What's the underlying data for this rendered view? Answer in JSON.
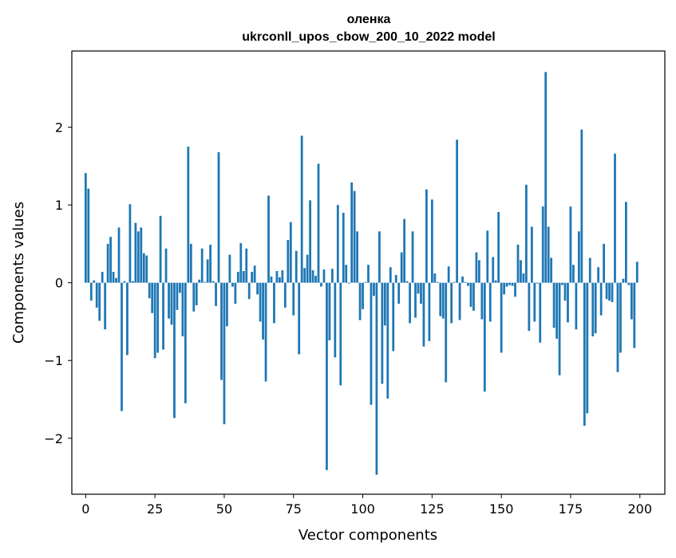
{
  "chart_data": {
    "type": "bar",
    "title": "оленка",
    "subtitle": "ukrconll_upos_cbow_200_10_2022 model",
    "xlabel": "Vector components",
    "ylabel": "Components values",
    "xlim": [
      -5,
      209
    ],
    "ylim": [
      -2.72,
      2.98
    ],
    "xticks": [
      0,
      25,
      50,
      75,
      100,
      125,
      150,
      175,
      200
    ],
    "yticks": [
      -2,
      -1,
      0,
      1,
      2
    ],
    "xtick_labels": [
      "0",
      "25",
      "50",
      "75",
      "100",
      "125",
      "150",
      "175",
      "200"
    ],
    "ytick_labels": [
      "−2",
      "−1",
      "0",
      "1",
      "2"
    ],
    "grid": false,
    "bar_color": "#1f77b4",
    "x": [
      0,
      1,
      2,
      3,
      4,
      5,
      6,
      7,
      8,
      9,
      10,
      11,
      12,
      13,
      14,
      15,
      16,
      17,
      18,
      19,
      20,
      21,
      22,
      23,
      24,
      25,
      26,
      27,
      28,
      29,
      30,
      31,
      32,
      33,
      34,
      35,
      36,
      37,
      38,
      39,
      40,
      41,
      42,
      43,
      44,
      45,
      46,
      47,
      48,
      49,
      50,
      51,
      52,
      53,
      54,
      55,
      56,
      57,
      58,
      59,
      60,
      61,
      62,
      63,
      64,
      65,
      66,
      67,
      68,
      69,
      70,
      71,
      72,
      73,
      74,
      75,
      76,
      77,
      78,
      79,
      80,
      81,
      82,
      83,
      84,
      85,
      86,
      87,
      88,
      89,
      90,
      91,
      92,
      93,
      94,
      95,
      96,
      97,
      98,
      99,
      100,
      101,
      102,
      103,
      104,
      105,
      106,
      107,
      108,
      109,
      110,
      111,
      112,
      113,
      114,
      115,
      116,
      117,
      118,
      119,
      120,
      121,
      122,
      123,
      124,
      125,
      126,
      127,
      128,
      129,
      130,
      131,
      132,
      133,
      134,
      135,
      136,
      137,
      138,
      139,
      140,
      141,
      142,
      143,
      144,
      145,
      146,
      147,
      148,
      149,
      150,
      151,
      152,
      153,
      154,
      155,
      156,
      157,
      158,
      159,
      160,
      161,
      162,
      163,
      164,
      165,
      166,
      167,
      168,
      169,
      170,
      171,
      172,
      173,
      174,
      175,
      176,
      177,
      178,
      179,
      180,
      181,
      182,
      183,
      184,
      185,
      186,
      187,
      188,
      189,
      190,
      191,
      192,
      193,
      194,
      195,
      196,
      197,
      198,
      199
    ],
    "values": [
      1.41,
      1.21,
      -0.23,
      0.03,
      -0.32,
      -0.49,
      0.14,
      -0.6,
      0.5,
      0.59,
      0.14,
      0.06,
      0.71,
      -1.65,
      0.02,
      -0.93,
      1.01,
      0.02,
      0.77,
      0.66,
      0.71,
      0.38,
      0.35,
      -0.2,
      -0.39,
      -0.97,
      -0.9,
      0.86,
      -0.86,
      0.44,
      -0.46,
      -0.54,
      -1.74,
      -0.35,
      -0.13,
      -0.69,
      -1.55,
      1.75,
      0.5,
      -0.37,
      -0.29,
      0.04,
      0.44,
      0.01,
      0.3,
      0.49,
      0.02,
      -0.3,
      1.68,
      -1.25,
      -1.82,
      -0.56,
      0.36,
      -0.05,
      -0.27,
      0.14,
      0.51,
      0.15,
      0.44,
      -0.21,
      0.14,
      0.22,
      -0.15,
      -0.5,
      -0.73,
      -1.27,
      1.12,
      0.08,
      -0.52,
      0.15,
      0.07,
      0.16,
      -0.32,
      0.55,
      0.78,
      -0.42,
      0.41,
      -0.92,
      1.89,
      0.19,
      0.36,
      1.06,
      0.16,
      0.09,
      1.53,
      -0.05,
      0.17,
      -2.41,
      -0.74,
      0.18,
      -0.96,
      1.0,
      -1.32,
      0.9,
      0.23,
      -0.01,
      1.29,
      1.18,
      0.66,
      -0.48,
      -0.34,
      0.01,
      0.23,
      -1.57,
      -0.17,
      -2.47,
      0.66,
      -1.3,
      -0.55,
      -1.49,
      0.2,
      -0.88,
      0.1,
      -0.27,
      0.39,
      0.82,
      0.02,
      -0.52,
      0.66,
      -0.45,
      -0.14,
      -0.27,
      -0.82,
      1.2,
      -0.75,
      1.07,
      0.12,
      0.01,
      -0.43,
      -0.46,
      -1.28,
      0.21,
      -0.52,
      0.01,
      1.84,
      -0.48,
      0.08,
      0.01,
      -0.04,
      -0.31,
      -0.36,
      0.39,
      0.29,
      -0.47,
      -1.4,
      0.67,
      -0.5,
      0.33,
      0.03,
      0.91,
      -0.9,
      -0.15,
      -0.05,
      -0.03,
      -0.04,
      -0.18,
      0.49,
      0.29,
      0.12,
      1.26,
      -0.62,
      0.72,
      -0.5,
      -0.01,
      -0.77,
      0.98,
      2.71,
      0.72,
      0.32,
      -0.58,
      -0.72,
      -1.19,
      -0.03,
      -0.23,
      -0.51,
      0.98,
      0.23,
      -0.6,
      0.66,
      1.97,
      -1.84,
      -1.68,
      0.32,
      -0.69,
      -0.65,
      0.2,
      -0.42,
      0.5,
      -0.21,
      -0.23,
      -0.25,
      1.66,
      -1.15,
      -0.9,
      0.05,
      1.04,
      -0.03,
      -0.47,
      -0.84,
      0.27
    ]
  }
}
